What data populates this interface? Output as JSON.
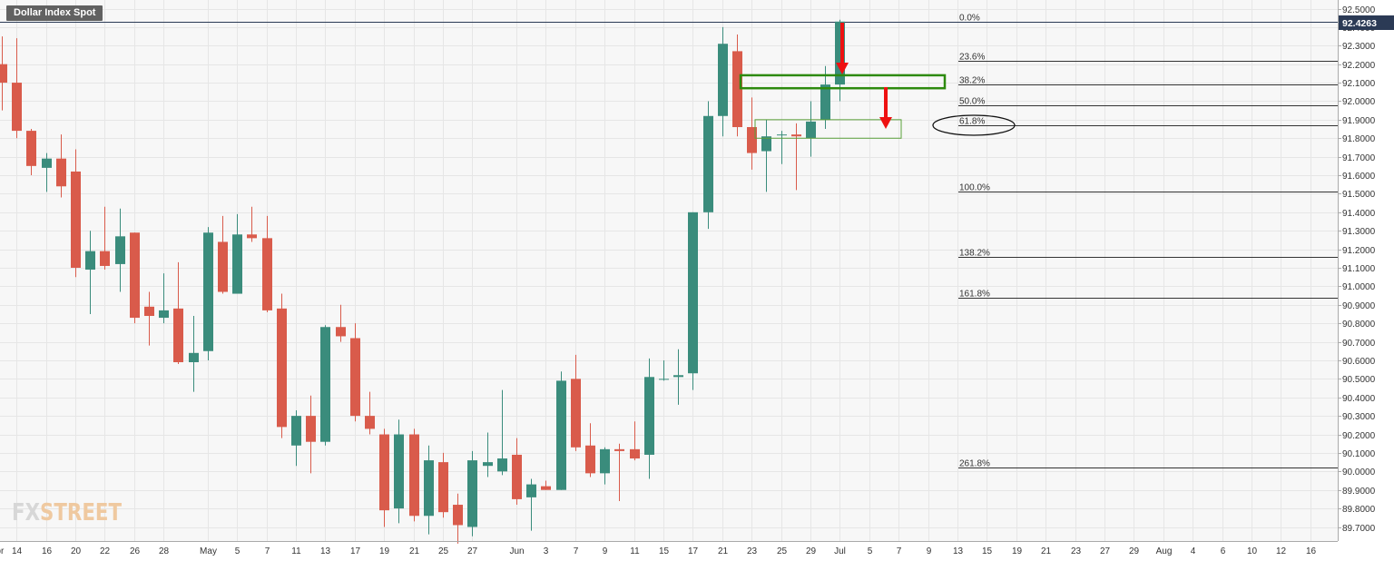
{
  "chart_data": {
    "type": "candlestick",
    "title": "Dollar Index Spot",
    "last_price": "92.4263",
    "ylim": [
      89.61,
      92.53
    ],
    "y_ticks": [
      "92.5000",
      "92.4000",
      "92.3000",
      "92.2000",
      "92.1000",
      "92.0000",
      "91.9000",
      "91.8000",
      "91.7000",
      "91.6000",
      "91.5000",
      "91.4000",
      "91.3000",
      "91.2000",
      "91.1000",
      "91.0000",
      "90.9000",
      "90.8000",
      "90.7000",
      "90.6000",
      "90.5000",
      "90.4000",
      "90.3000",
      "90.2000",
      "90.1000",
      "90.0000",
      "89.9000",
      "89.8000",
      "89.7000"
    ],
    "x_ticks": [
      {
        "label": "Apr",
        "i": -0.4
      },
      {
        "label": "14",
        "i": 1
      },
      {
        "label": "16",
        "i": 3
      },
      {
        "label": "20",
        "i": 5
      },
      {
        "label": "22",
        "i": 7
      },
      {
        "label": "26",
        "i": 9
      },
      {
        "label": "28",
        "i": 11
      },
      {
        "label": "May",
        "i": 14
      },
      {
        "label": "5",
        "i": 16
      },
      {
        "label": "7",
        "i": 18
      },
      {
        "label": "11",
        "i": 20
      },
      {
        "label": "13",
        "i": 22
      },
      {
        "label": "17",
        "i": 24
      },
      {
        "label": "19",
        "i": 26
      },
      {
        "label": "21",
        "i": 28
      },
      {
        "label": "25",
        "i": 30
      },
      {
        "label": "27",
        "i": 32
      },
      {
        "label": "Jun",
        "i": 35
      },
      {
        "label": "3",
        "i": 37
      },
      {
        "label": "7",
        "i": 39
      },
      {
        "label": "9",
        "i": 41
      },
      {
        "label": "11",
        "i": 43
      },
      {
        "label": "15",
        "i": 45
      },
      {
        "label": "17",
        "i": 47
      },
      {
        "label": "21",
        "i": 49
      },
      {
        "label": "23",
        "i": 51
      },
      {
        "label": "25",
        "i": 53
      },
      {
        "label": "29",
        "i": 55
      },
      {
        "label": "Jul",
        "i": 57
      },
      {
        "label": "5",
        "i": 59
      },
      {
        "label": "7",
        "i": 61
      },
      {
        "label": "9",
        "i": 63
      },
      {
        "label": "13",
        "i": 65
      },
      {
        "label": "15",
        "i": 67
      },
      {
        "label": "19",
        "i": 69
      },
      {
        "label": "21",
        "i": 71
      },
      {
        "label": "23",
        "i": 73
      },
      {
        "label": "27",
        "i": 75
      },
      {
        "label": "29",
        "i": 77
      },
      {
        "label": "Aug",
        "i": 79
      },
      {
        "label": "4",
        "i": 81
      },
      {
        "label": "6",
        "i": 83
      },
      {
        "label": "10",
        "i": 85
      },
      {
        "label": "12",
        "i": 87
      },
      {
        "label": "16",
        "i": 89
      }
    ],
    "candles": [
      {
        "o": 92.2,
        "h": 92.35,
        "l": 91.95,
        "c": 92.1
      },
      {
        "o": 92.1,
        "h": 92.34,
        "l": 91.8,
        "c": 91.84
      },
      {
        "o": 91.84,
        "h": 91.85,
        "l": 91.6,
        "c": 91.65
      },
      {
        "o": 91.64,
        "h": 91.72,
        "l": 91.51,
        "c": 91.69
      },
      {
        "o": 91.69,
        "h": 91.82,
        "l": 91.48,
        "c": 91.54
      },
      {
        "o": 91.62,
        "h": 91.74,
        "l": 91.05,
        "c": 91.1
      },
      {
        "o": 91.09,
        "h": 91.3,
        "l": 90.85,
        "c": 91.19
      },
      {
        "o": 91.19,
        "h": 91.43,
        "l": 91.09,
        "c": 91.11
      },
      {
        "o": 91.12,
        "h": 91.42,
        "l": 90.97,
        "c": 91.27
      },
      {
        "o": 91.29,
        "h": 91.29,
        "l": 90.8,
        "c": 90.83
      },
      {
        "o": 90.89,
        "h": 90.97,
        "l": 90.68,
        "c": 90.84
      },
      {
        "o": 90.83,
        "h": 91.07,
        "l": 90.8,
        "c": 90.87
      },
      {
        "o": 90.88,
        "h": 91.13,
        "l": 90.58,
        "c": 90.59
      },
      {
        "o": 90.59,
        "h": 90.84,
        "l": 90.43,
        "c": 90.64
      },
      {
        "o": 90.65,
        "h": 91.32,
        "l": 90.6,
        "c": 91.29
      },
      {
        "o": 91.24,
        "h": 91.38,
        "l": 90.96,
        "c": 90.97
      },
      {
        "o": 90.96,
        "h": 91.39,
        "l": 90.96,
        "c": 91.28
      },
      {
        "o": 91.28,
        "h": 91.43,
        "l": 91.24,
        "c": 91.26
      },
      {
        "o": 91.26,
        "h": 91.38,
        "l": 90.86,
        "c": 90.87
      },
      {
        "o": 90.88,
        "h": 90.96,
        "l": 90.18,
        "c": 90.24
      },
      {
        "o": 90.14,
        "h": 90.33,
        "l": 90.03,
        "c": 90.3
      },
      {
        "o": 90.3,
        "h": 90.41,
        "l": 89.99,
        "c": 90.16
      },
      {
        "o": 90.16,
        "h": 90.79,
        "l": 90.14,
        "c": 90.78
      },
      {
        "o": 90.78,
        "h": 90.9,
        "l": 90.7,
        "c": 90.73
      },
      {
        "o": 90.72,
        "h": 90.8,
        "l": 90.27,
        "c": 90.3
      },
      {
        "o": 90.3,
        "h": 90.43,
        "l": 90.2,
        "c": 90.23
      },
      {
        "o": 90.2,
        "h": 90.23,
        "l": 89.7,
        "c": 89.79
      },
      {
        "o": 89.8,
        "h": 90.28,
        "l": 89.72,
        "c": 90.2
      },
      {
        "o": 90.2,
        "h": 90.23,
        "l": 89.73,
        "c": 89.76
      },
      {
        "o": 89.76,
        "h": 90.14,
        "l": 89.66,
        "c": 90.06
      },
      {
        "o": 90.05,
        "h": 90.1,
        "l": 89.75,
        "c": 89.78
      },
      {
        "o": 89.82,
        "h": 89.88,
        "l": 89.61,
        "c": 89.71
      },
      {
        "o": 89.7,
        "h": 90.11,
        "l": 89.65,
        "c": 90.06
      },
      {
        "o": 90.03,
        "h": 90.21,
        "l": 89.97,
        "c": 90.05
      },
      {
        "o": 90.0,
        "h": 90.44,
        "l": 89.98,
        "c": 90.07
      },
      {
        "o": 90.09,
        "h": 90.18,
        "l": 89.82,
        "c": 89.85
      },
      {
        "o": 89.86,
        "h": 89.96,
        "l": 89.68,
        "c": 89.93
      },
      {
        "o": 89.92,
        "h": 89.95,
        "l": 89.9,
        "c": 89.9
      },
      {
        "o": 89.9,
        "h": 90.54,
        "l": 89.9,
        "c": 90.49
      },
      {
        "o": 90.5,
        "h": 90.63,
        "l": 90.11,
        "c": 90.13
      },
      {
        "o": 90.14,
        "h": 90.26,
        "l": 89.97,
        "c": 89.99
      },
      {
        "o": 89.99,
        "h": 90.13,
        "l": 89.93,
        "c": 90.12
      },
      {
        "o": 90.12,
        "h": 90.15,
        "l": 89.84,
        "c": 90.11
      },
      {
        "o": 90.12,
        "h": 90.27,
        "l": 90.06,
        "c": 90.07
      },
      {
        "o": 90.09,
        "h": 90.61,
        "l": 89.96,
        "c": 90.51
      },
      {
        "o": 90.5,
        "h": 90.6,
        "l": 90.49,
        "c": 90.5
      },
      {
        "o": 90.51,
        "h": 90.66,
        "l": 90.36,
        "c": 90.52
      },
      {
        "o": 90.53,
        "h": 91.4,
        "l": 90.44,
        "c": 91.4
      },
      {
        "o": 91.4,
        "h": 92.0,
        "l": 91.31,
        "c": 91.92
      },
      {
        "o": 91.92,
        "h": 92.4,
        "l": 91.81,
        "c": 92.31
      },
      {
        "o": 92.27,
        "h": 92.36,
        "l": 91.81,
        "c": 91.86
      },
      {
        "o": 91.86,
        "h": 92.02,
        "l": 91.63,
        "c": 91.72
      },
      {
        "o": 91.73,
        "h": 91.9,
        "l": 91.51,
        "c": 91.81
      },
      {
        "o": 91.82,
        "h": 91.84,
        "l": 91.66,
        "c": 91.82
      },
      {
        "o": 91.82,
        "h": 91.88,
        "l": 91.52,
        "c": 91.81
      },
      {
        "o": 91.8,
        "h": 92.0,
        "l": 91.7,
        "c": 91.89
      },
      {
        "o": 91.9,
        "h": 92.19,
        "l": 91.85,
        "c": 92.09
      },
      {
        "o": 92.09,
        "h": 92.44,
        "l": 92.0,
        "c": 92.43
      }
    ],
    "up_color": "#3a8c7c",
    "down_color": "#d95b4b",
    "fib_levels": [
      {
        "label": "0.0%",
        "price": 92.43
      },
      {
        "label": "23.6%",
        "price": 92.22
      },
      {
        "label": "38.2%",
        "price": 92.09
      },
      {
        "label": "50.0%",
        "price": 91.98
      },
      {
        "label": "61.8%",
        "price": 91.87
      },
      {
        "label": "100.0%",
        "price": 91.51
      },
      {
        "label": "138.2%",
        "price": 91.16
      },
      {
        "label": "161.8%",
        "price": 90.94
      },
      {
        "label": "261.8%",
        "price": 90.02
      }
    ],
    "annotations": {
      "zone_color": "#2d8a0e",
      "arrow_color": "#ee1111"
    }
  },
  "watermark": {
    "part1": "FX",
    "part2": "STREET"
  }
}
